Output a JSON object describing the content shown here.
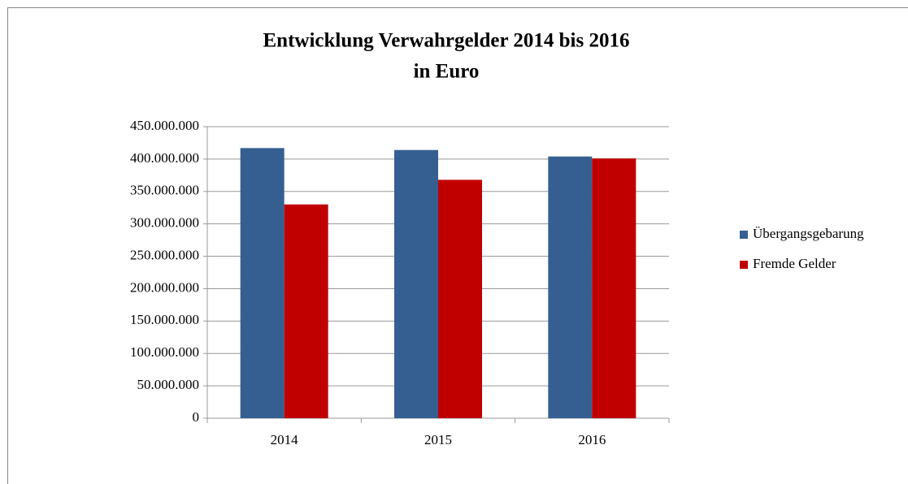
{
  "chart_data": {
    "type": "bar",
    "title": [
      "Entwicklung Verwahrgelder 2014 bis 2016",
      "in Euro"
    ],
    "categories": [
      "2014",
      "2015",
      "2016"
    ],
    "series": [
      {
        "name": "Übergangsgebarung",
        "color": "#365f91",
        "values": [
          417000000,
          414000000,
          404000000
        ]
      },
      {
        "name": "Fremde Gelder",
        "color": "#c00000",
        "values": [
          330000000,
          368000000,
          401000000
        ]
      }
    ],
    "ylim": [
      0,
      450000000
    ],
    "yticks": [
      0,
      {
        "value": 50000000,
        "label": "50.000.000"
      },
      {
        "value": 100000000,
        "label": "100.000.000"
      },
      {
        "value": 150000000,
        "label": "150.000.000"
      },
      {
        "value": 200000000,
        "label": "200.000.000"
      },
      {
        "value": 250000000,
        "label": "250.000.000"
      },
      {
        "value": 300000000,
        "label": "300.000.000"
      },
      {
        "value": 350000000,
        "label": "350.000.000"
      },
      {
        "value": 400000000,
        "label": "400.000.000"
      },
      {
        "value": 450000000,
        "label": "450.000.000"
      }
    ],
    "grid": true,
    "legend": "right"
  }
}
